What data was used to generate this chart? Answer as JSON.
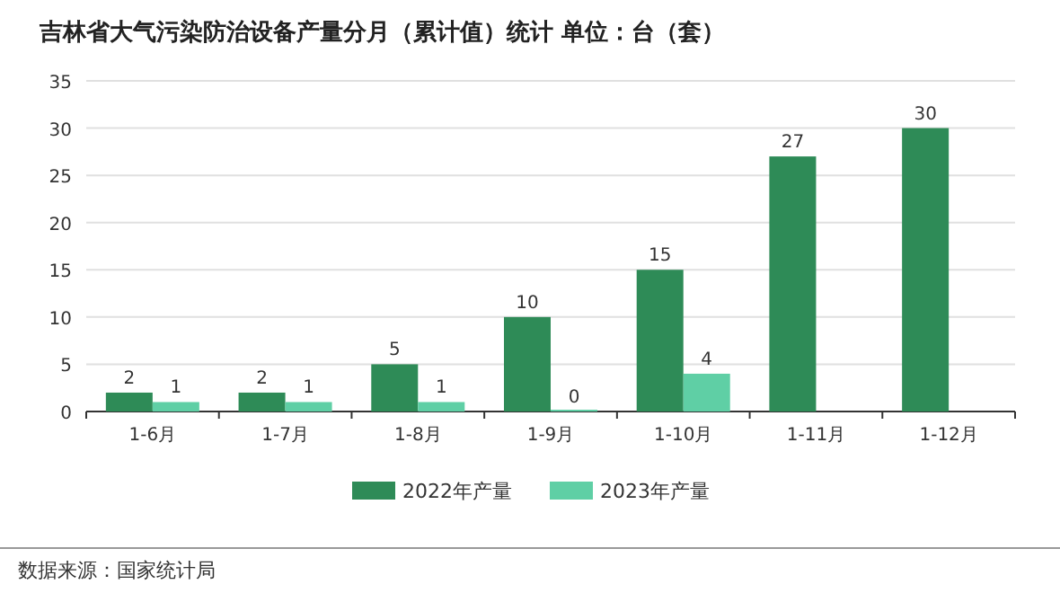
{
  "chart_data": {
    "type": "bar",
    "title": "吉林省大气污染防治设备产量分月（累计值）统计 单位：台（套）",
    "categories": [
      "1-6月",
      "1-7月",
      "1-8月",
      "1-9月",
      "1-10月",
      "1-11月",
      "1-12月"
    ],
    "series": [
      {
        "name": "2022年产量",
        "color": "#2e8b57",
        "values": [
          2,
          2,
          5,
          10,
          15,
          27,
          30
        ]
      },
      {
        "name": "2023年产量",
        "color": "#5fcfa5",
        "values": [
          1,
          1,
          1,
          0,
          4,
          null,
          null
        ]
      }
    ],
    "ylim": [
      0,
      35
    ],
    "yticks": [
      0,
      5,
      10,
      15,
      20,
      25,
      30,
      35
    ],
    "grid": "y",
    "legend": "bottom",
    "data_labels": true,
    "annotations": [
      "数据来源：国家统计局"
    ]
  }
}
